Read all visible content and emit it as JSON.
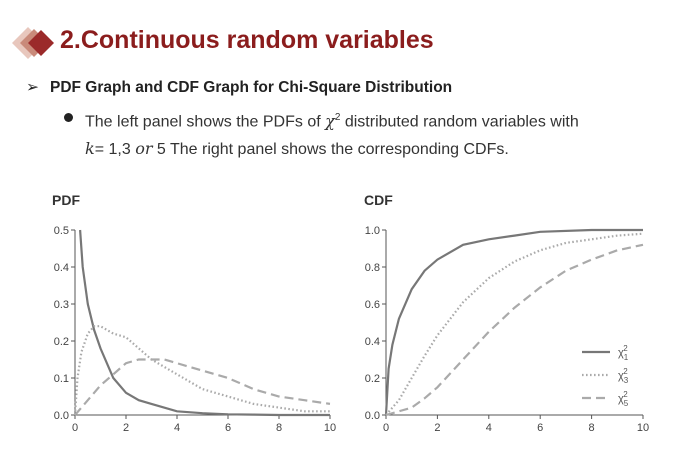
{
  "header": {
    "title": "2.Continuous random variables",
    "subtitle": "PDF Graph and CDF Graph for Chi-Square Distribution",
    "body_line1_a": "The left panel shows the PDFs of ",
    "body_chi": "χ",
    "body_sup": "2",
    "body_line1_b": " distributed random variables with",
    "body_k": "k",
    "body_line2_b": "= 1,3 ",
    "body_or": "or",
    "body_line2_c": " 5 The right panel shows the corresponding CDFs.",
    "colors": {
      "title": "#8b1d1d",
      "diamond_dark": "#9b2a2a",
      "diamond_mid": "#c98a7a",
      "diamond_light": "#e8c7bd"
    }
  },
  "chart_data": [
    {
      "type": "line",
      "title": "PDF",
      "xlim": [
        0,
        10
      ],
      "ylim": [
        0,
        0.5
      ],
      "xticks": [
        "0",
        "2",
        "4",
        "6",
        "8",
        "10"
      ],
      "yticks": [
        "0.0",
        "0.1",
        "0.2",
        "0.3",
        "0.4",
        "0.5"
      ],
      "grid": false,
      "series": [
        {
          "label_symbol": "χ",
          "label_sub": "1",
          "label_sup": "2",
          "style": "solid",
          "x": [
            0.2,
            0.3,
            0.5,
            0.75,
            1,
            1.5,
            2,
            2.5,
            3,
            4,
            5,
            6,
            7,
            8,
            9,
            10
          ],
          "y": [
            0.5,
            0.4,
            0.3,
            0.23,
            0.18,
            0.1,
            0.06,
            0.04,
            0.03,
            0.01,
            0.005,
            0.002,
            0.001,
            0,
            0,
            0
          ]
        },
        {
          "label_symbol": "χ",
          "label_sub": "3",
          "label_sup": "2",
          "style": "dotted",
          "x": [
            0,
            0.1,
            0.25,
            0.5,
            0.75,
            1,
            1.5,
            2,
            2.5,
            3,
            4,
            5,
            6,
            7,
            8,
            9,
            10
          ],
          "y": [
            0,
            0.1,
            0.17,
            0.22,
            0.24,
            0.24,
            0.22,
            0.21,
            0.18,
            0.15,
            0.11,
            0.07,
            0.05,
            0.03,
            0.02,
            0.01,
            0.01
          ]
        },
        {
          "label_symbol": "χ",
          "label_sub": "5",
          "label_sup": "2",
          "style": "dashed",
          "x": [
            0,
            0.5,
            1,
            1.5,
            2,
            2.5,
            3,
            3.5,
            4,
            5,
            6,
            7,
            8,
            9,
            10
          ],
          "y": [
            0,
            0.04,
            0.08,
            0.11,
            0.14,
            0.15,
            0.15,
            0.15,
            0.14,
            0.12,
            0.1,
            0.07,
            0.05,
            0.04,
            0.03
          ]
        }
      ]
    },
    {
      "type": "line",
      "title": "CDF",
      "xlim": [
        0,
        10
      ],
      "ylim": [
        0,
        1.0
      ],
      "xticks": [
        "0",
        "2",
        "4",
        "6",
        "8",
        "10"
      ],
      "yticks": [
        "0.0",
        "0.2",
        "0.4",
        "0.6",
        "0.8",
        "1.0"
      ],
      "grid": false,
      "legend": "right",
      "series": [
        {
          "label_symbol": "χ",
          "label_sub": "1",
          "label_sup": "2",
          "style": "solid",
          "x": [
            0,
            0.1,
            0.25,
            0.5,
            1,
            1.5,
            2,
            3,
            4,
            5,
            6,
            8,
            10
          ],
          "y": [
            0,
            0.25,
            0.38,
            0.52,
            0.68,
            0.78,
            0.84,
            0.92,
            0.95,
            0.97,
            0.99,
            1.0,
            1.0
          ]
        },
        {
          "label_symbol": "χ",
          "label_sub": "3",
          "label_sup": "2",
          "style": "dotted",
          "x": [
            0,
            0.5,
            1,
            1.5,
            2,
            3,
            4,
            5,
            6,
            7,
            8,
            9,
            10
          ],
          "y": [
            0,
            0.08,
            0.2,
            0.32,
            0.43,
            0.61,
            0.74,
            0.83,
            0.89,
            0.93,
            0.95,
            0.97,
            0.98
          ]
        },
        {
          "label_symbol": "χ",
          "label_sub": "5",
          "label_sup": "2",
          "style": "dashed",
          "x": [
            0,
            1,
            1.5,
            2,
            3,
            4,
            5,
            6,
            7,
            8,
            9,
            10
          ],
          "y": [
            0,
            0.04,
            0.09,
            0.15,
            0.3,
            0.45,
            0.58,
            0.69,
            0.78,
            0.84,
            0.89,
            0.92
          ]
        }
      ]
    }
  ]
}
